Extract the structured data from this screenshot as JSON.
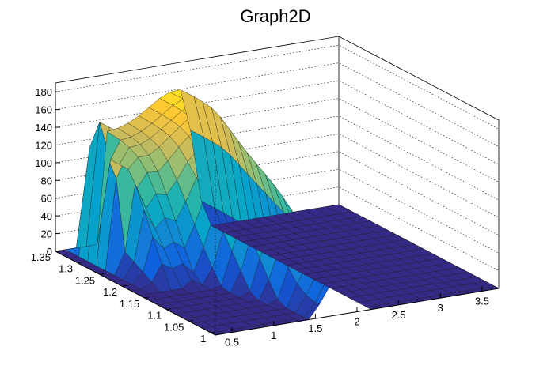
{
  "chart_data": {
    "type": "surface",
    "title": "Graph2D",
    "xlabel": "",
    "ylabel": "",
    "zlabel": "",
    "xlim": [
      0.3,
      3.7
    ],
    "ylim": [
      0.99,
      1.35
    ],
    "zlim": [
      0,
      190
    ],
    "x_ticks": [
      "0.5",
      "1",
      "1.5",
      "2",
      "2.5",
      "3",
      "3.5"
    ],
    "y_ticks": [
      "1",
      "1.05",
      "1.1",
      "1.15",
      "1.2",
      "1.25",
      "1.3",
      "1.35"
    ],
    "z_ticks": [
      "0",
      "20",
      "40",
      "60",
      "80",
      "100",
      "120",
      "140",
      "160",
      "180"
    ],
    "grid": true,
    "colormap": "parula",
    "colormap_stops": [
      "#352a87",
      "#0f5cdd",
      "#1481d6",
      "#06a4ca",
      "#2eb7a4",
      "#87bf77",
      "#d1bb59",
      "#fec832",
      "#f9fb0e"
    ],
    "surface_x": [
      0.3,
      0.42,
      0.55,
      0.67,
      0.8,
      0.92,
      1.05,
      1.17,
      1.3,
      1.42,
      1.55,
      1.67,
      1.8,
      1.92,
      2.05,
      2.17,
      2.3,
      2.42,
      2.55,
      2.67,
      2.8,
      2.92,
      3.05,
      3.17,
      3.3,
      3.42,
      3.55,
      3.7
    ],
    "surface_y": [
      0.99,
      1.0,
      1.02,
      1.04,
      1.06,
      1.08,
      1.1,
      1.12,
      1.14,
      1.16,
      1.18,
      1.2,
      1.22,
      1.24,
      1.26,
      1.28,
      1.3,
      1.32,
      1.35
    ],
    "peak_value": 160
  }
}
